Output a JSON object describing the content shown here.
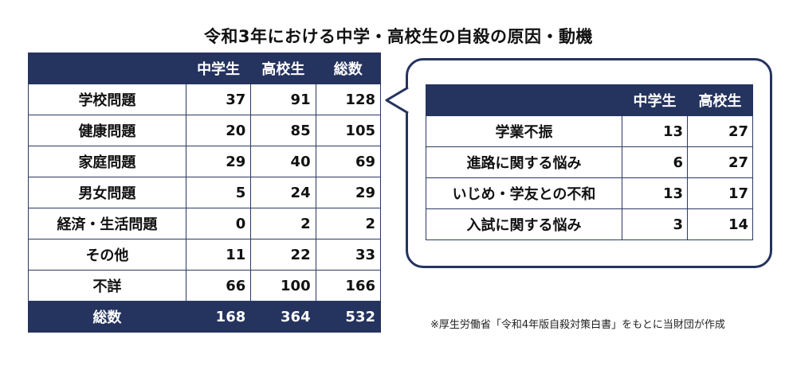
{
  "title": "令和3年における中学・高校生の自殺の原因・動機",
  "main_table": {
    "headers": [
      "",
      "中学生",
      "高校生",
      "総数"
    ],
    "rows": [
      {
        "label": "学校問題",
        "values": [
          "37",
          "91",
          "128"
        ]
      },
      {
        "label": "健康問題",
        "values": [
          "20",
          "85",
          "105"
        ]
      },
      {
        "label": "家庭問題",
        "values": [
          "29",
          "40",
          "69"
        ]
      },
      {
        "label": "男女問題",
        "values": [
          "5",
          "24",
          "29"
        ]
      },
      {
        "label": "経済・生活問題",
        "values": [
          "0",
          "2",
          "2"
        ]
      },
      {
        "label": "その他",
        "values": [
          "11",
          "22",
          "33"
        ]
      },
      {
        "label": "不詳",
        "values": [
          "66",
          "100",
          "166"
        ]
      }
    ],
    "total": {
      "label": "総数",
      "values": [
        "168",
        "364",
        "532"
      ]
    }
  },
  "sub_table": {
    "headers": [
      "",
      "中学生",
      "高校生"
    ],
    "rows": [
      {
        "label": "学業不振",
        "values": [
          "13",
          "27"
        ]
      },
      {
        "label": "進路に関する悩み",
        "values": [
          "6",
          "27"
        ]
      },
      {
        "label": "いじめ・学友との不和",
        "values": [
          "13",
          "17"
        ]
      },
      {
        "label": "入試に関する悩み",
        "values": [
          "3",
          "14"
        ]
      }
    ]
  },
  "source_note": "※厚生労働省「令和4年版自殺対策白書」をもとに当財団が作成",
  "colors": {
    "header_bg": "#25335f",
    "header_text": "#ffffff",
    "border": "#2b3a63"
  }
}
